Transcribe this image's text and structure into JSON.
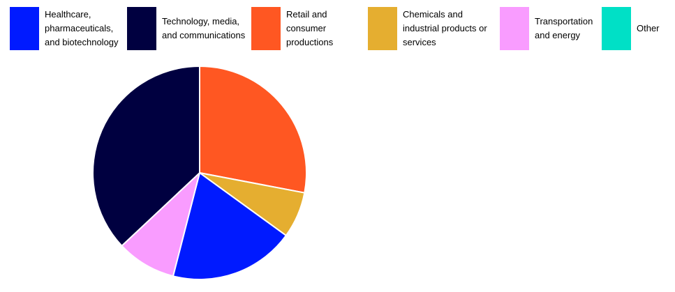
{
  "chart_data": {
    "type": "pie",
    "title": "",
    "legend_position": "top",
    "slices": [
      {
        "label": "Healthcare, pharmaceuticals, and biotechnology",
        "value": 19,
        "color": "#001AFF"
      },
      {
        "label": "Technology, media, and communications",
        "value": 37,
        "color": "#000040"
      },
      {
        "label": "Retail and consumer productions",
        "value": 28,
        "color": "#FF5722"
      },
      {
        "label": "Chemicals and industrial products or services",
        "value": 7,
        "color": "#E5AE30"
      },
      {
        "label": "Transportation and energy",
        "value": 9,
        "color": "#F99CFF"
      },
      {
        "label": "Other",
        "value": 0,
        "color": "#00E0C6"
      }
    ]
  }
}
